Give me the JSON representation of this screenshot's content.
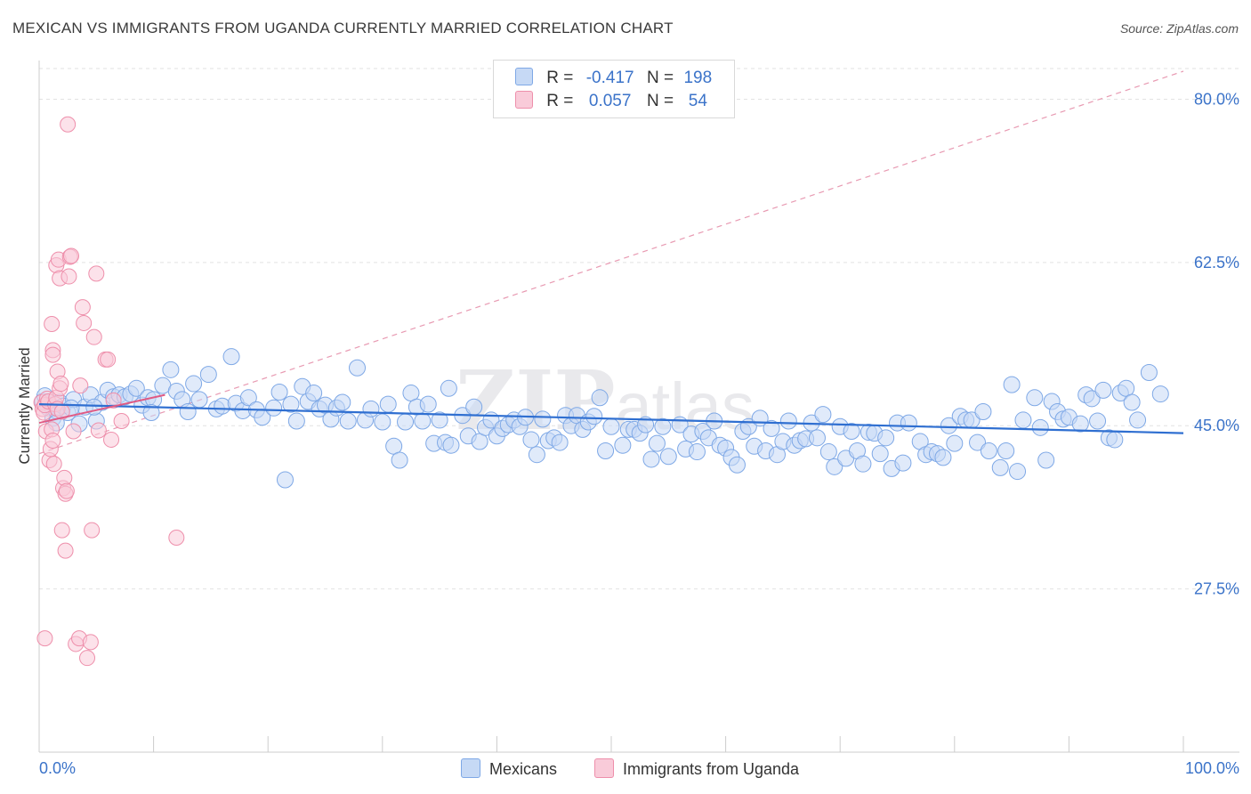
{
  "title": "MEXICAN VS IMMIGRANTS FROM UGANDA CURRENTLY MARRIED CORRELATION CHART",
  "source": "Source: ZipAtlas.com",
  "legend": {
    "r_label": "R =",
    "n_label": "N =",
    "mexicans": {
      "r": "-0.417",
      "n": "198"
    },
    "uganda": {
      "r": "0.057",
      "n": "54"
    }
  },
  "bottom_legend": {
    "mexicans": "Mexicans",
    "uganda": "Immigrants from Uganda"
  },
  "colors": {
    "mexicans_fill": "#c6d9f5",
    "mexicans_stroke": "#7ea8e6",
    "mexicans_line": "#2f6fd1",
    "uganda_fill": "#f9cbd9",
    "uganda_stroke": "#ee8fab",
    "uganda_line": "#e05a84",
    "axis_label": "#3b73c9"
  },
  "chart_data": {
    "type": "scatter",
    "title": "MEXICAN VS IMMIGRANTS FROM UGANDA CURRENTLY MARRIED CORRELATION CHART",
    "xlabel": "",
    "ylabel": "Currently Married",
    "xlim": [
      0,
      100
    ],
    "ylim": [
      10,
      83
    ],
    "x_tick_labels": [
      "0.0%",
      "100.0%"
    ],
    "y_ticks": [
      27.5,
      45.0,
      62.5,
      80.0
    ],
    "y_tick_labels": [
      "27.5%",
      "45.0%",
      "62.5%",
      "80.0%"
    ],
    "grid": "horizontal dashed",
    "watermark": "ZIPatlas",
    "series": [
      {
        "name": "Mexicans",
        "r": -0.417,
        "n": 198,
        "trend": {
          "x": [
            0,
            100
          ],
          "y": [
            47.3,
            44.2
          ]
        },
        "points": [
          [
            0.3,
            47.6
          ],
          [
            0.5,
            48.2
          ],
          [
            0.8,
            46.9
          ],
          [
            1.0,
            47.2
          ],
          [
            1.2,
            45.8
          ],
          [
            1.5,
            46.6
          ],
          [
            1.8,
            47.5
          ],
          [
            2.1,
            47.1
          ],
          [
            2.5,
            46.4
          ],
          [
            3.0,
            47.8
          ],
          [
            3.5,
            45.2
          ],
          [
            4.0,
            47.0
          ],
          [
            4.5,
            48.3
          ],
          [
            5.0,
            45.5
          ],
          [
            5.5,
            47.5
          ],
          [
            6.0,
            48.8
          ],
          [
            6.5,
            48.1
          ],
          [
            7.0,
            48.3
          ],
          [
            7.5,
            48.1
          ],
          [
            8.0,
            48.4
          ],
          [
            8.5,
            49.0
          ],
          [
            9.0,
            47.2
          ],
          [
            9.5,
            48.0
          ],
          [
            10.0,
            47.8
          ],
          [
            10.8,
            49.3
          ],
          [
            11.5,
            51.0
          ],
          [
            12.0,
            48.7
          ],
          [
            12.5,
            47.8
          ],
          [
            13.0,
            46.5
          ],
          [
            13.5,
            49.5
          ],
          [
            14.0,
            47.8
          ],
          [
            14.8,
            50.5
          ],
          [
            15.5,
            46.8
          ],
          [
            16.0,
            47.1
          ],
          [
            16.8,
            52.4
          ],
          [
            17.2,
            47.4
          ],
          [
            17.8,
            46.6
          ],
          [
            18.3,
            48.0
          ],
          [
            19.0,
            46.7
          ],
          [
            19.5,
            45.9
          ],
          [
            20.5,
            46.9
          ],
          [
            21.0,
            48.6
          ],
          [
            22.0,
            47.3
          ],
          [
            22.5,
            45.5
          ],
          [
            23.0,
            49.2
          ],
          [
            23.5,
            47.6
          ],
          [
            24.0,
            48.5
          ],
          [
            24.5,
            46.8
          ],
          [
            25.0,
            47.2
          ],
          [
            25.5,
            45.7
          ],
          [
            26.0,
            46.9
          ],
          [
            26.5,
            47.5
          ],
          [
            27.0,
            45.5
          ],
          [
            27.8,
            51.2
          ],
          [
            28.5,
            45.6
          ],
          [
            29.0,
            46.8
          ],
          [
            30.0,
            45.4
          ],
          [
            30.5,
            47.3
          ],
          [
            31.0,
            42.8
          ],
          [
            31.5,
            41.3
          ],
          [
            32.0,
            45.4
          ],
          [
            32.5,
            48.5
          ],
          [
            33.0,
            47.0
          ],
          [
            33.5,
            45.5
          ],
          [
            34.0,
            47.3
          ],
          [
            34.5,
            43.1
          ],
          [
            35.0,
            45.6
          ],
          [
            35.5,
            43.2
          ],
          [
            35.8,
            49.0
          ],
          [
            36.0,
            42.9
          ],
          [
            37.0,
            46.1
          ],
          [
            37.5,
            43.9
          ],
          [
            38.0,
            47.0
          ],
          [
            38.5,
            43.3
          ],
          [
            39.0,
            44.8
          ],
          [
            39.5,
            45.6
          ],
          [
            40.0,
            43.9
          ],
          [
            40.5,
            44.7
          ],
          [
            41.0,
            45.1
          ],
          [
            41.5,
            45.6
          ],
          [
            42.0,
            44.9
          ],
          [
            42.5,
            45.9
          ],
          [
            43.0,
            43.5
          ],
          [
            43.5,
            41.9
          ],
          [
            44.0,
            45.7
          ],
          [
            44.5,
            43.4
          ],
          [
            45.0,
            43.7
          ],
          [
            45.5,
            43.2
          ],
          [
            46.0,
            46.1
          ],
          [
            46.5,
            45.0
          ],
          [
            47.0,
            46.1
          ],
          [
            47.5,
            44.6
          ],
          [
            48.0,
            45.4
          ],
          [
            48.5,
            46.0
          ],
          [
            49.0,
            48.0
          ],
          [
            49.5,
            42.3
          ],
          [
            50.0,
            44.9
          ],
          [
            51.0,
            42.9
          ],
          [
            51.5,
            44.6
          ],
          [
            52.0,
            44.6
          ],
          [
            52.5,
            44.2
          ],
          [
            53.0,
            45.1
          ],
          [
            53.5,
            41.4
          ],
          [
            54.0,
            43.1
          ],
          [
            54.5,
            44.9
          ],
          [
            55.0,
            41.7
          ],
          [
            56.0,
            45.1
          ],
          [
            56.5,
            42.5
          ],
          [
            57.0,
            44.1
          ],
          [
            57.5,
            42.2
          ],
          [
            58.0,
            44.4
          ],
          [
            58.5,
            43.7
          ],
          [
            59.0,
            45.5
          ],
          [
            59.5,
            42.9
          ],
          [
            60.0,
            42.6
          ],
          [
            60.5,
            41.6
          ],
          [
            61.0,
            40.8
          ],
          [
            61.5,
            44.4
          ],
          [
            62.0,
            44.9
          ],
          [
            62.5,
            42.8
          ],
          [
            63.0,
            45.8
          ],
          [
            63.5,
            42.3
          ],
          [
            64.0,
            44.7
          ],
          [
            64.5,
            41.9
          ],
          [
            65.0,
            43.3
          ],
          [
            65.5,
            45.5
          ],
          [
            66.0,
            42.9
          ],
          [
            66.5,
            43.4
          ],
          [
            67.0,
            43.6
          ],
          [
            67.5,
            45.3
          ],
          [
            68.0,
            43.7
          ],
          [
            68.5,
            46.2
          ],
          [
            69.0,
            42.2
          ],
          [
            69.5,
            40.6
          ],
          [
            70.0,
            44.9
          ],
          [
            70.5,
            41.5
          ],
          [
            71.0,
            44.4
          ],
          [
            71.5,
            42.3
          ],
          [
            72.0,
            40.9
          ],
          [
            72.5,
            44.3
          ],
          [
            73.0,
            44.2
          ],
          [
            73.5,
            42.0
          ],
          [
            74.0,
            43.7
          ],
          [
            74.5,
            40.4
          ],
          [
            75.0,
            45.3
          ],
          [
            75.5,
            41.0
          ],
          [
            76.0,
            45.3
          ],
          [
            77.0,
            43.3
          ],
          [
            77.5,
            41.9
          ],
          [
            78.0,
            42.2
          ],
          [
            78.5,
            42.0
          ],
          [
            79.0,
            41.6
          ],
          [
            79.5,
            45.0
          ],
          [
            80.0,
            43.1
          ],
          [
            80.5,
            46.0
          ],
          [
            81.0,
            45.6
          ],
          [
            81.5,
            45.6
          ],
          [
            82.0,
            43.2
          ],
          [
            82.5,
            46.5
          ],
          [
            83.0,
            42.3
          ],
          [
            84.0,
            40.5
          ],
          [
            84.5,
            42.3
          ],
          [
            85.0,
            49.4
          ],
          [
            85.5,
            40.1
          ],
          [
            86.0,
            45.6
          ],
          [
            87.0,
            48.0
          ],
          [
            87.5,
            44.8
          ],
          [
            88.0,
            41.3
          ],
          [
            88.5,
            47.6
          ],
          [
            89.0,
            46.5
          ],
          [
            89.5,
            45.7
          ],
          [
            90.0,
            45.9
          ],
          [
            91.0,
            45.2
          ],
          [
            91.5,
            48.3
          ],
          [
            92.0,
            47.9
          ],
          [
            92.5,
            45.5
          ],
          [
            93.0,
            48.8
          ],
          [
            93.5,
            43.7
          ],
          [
            94.0,
            43.5
          ],
          [
            94.5,
            48.5
          ],
          [
            95.0,
            49.0
          ],
          [
            95.5,
            47.5
          ],
          [
            96.0,
            45.6
          ],
          [
            97.0,
            50.7
          ],
          [
            98.0,
            48.4
          ],
          [
            1.5,
            45.3
          ],
          [
            2.8,
            46.9
          ],
          [
            4.8,
            47.0
          ],
          [
            9.8,
            46.4
          ],
          [
            21.5,
            39.2
          ]
        ]
      },
      {
        "name": "Immigrants from Uganda",
        "r": 0.057,
        "n": 54,
        "trend": {
          "x": [
            0,
            11
          ],
          "y": [
            45.3,
            48.3
          ]
        },
        "points": [
          [
            0.2,
            47.5
          ],
          [
            0.3,
            46.8
          ],
          [
            0.4,
            46.4
          ],
          [
            0.5,
            47.2
          ],
          [
            0.6,
            44.4
          ],
          [
            0.7,
            47.9
          ],
          [
            0.8,
            47.6
          ],
          [
            0.9,
            41.3
          ],
          [
            1.0,
            42.5
          ],
          [
            1.1,
            44.6
          ],
          [
            1.2,
            43.4
          ],
          [
            1.3,
            40.9
          ],
          [
            1.4,
            47.3
          ],
          [
            1.5,
            48.0
          ],
          [
            1.6,
            46.8
          ],
          [
            1.2,
            53.1
          ],
          [
            1.1,
            55.9
          ],
          [
            1.2,
            52.6
          ],
          [
            1.5,
            62.2
          ],
          [
            1.7,
            62.8
          ],
          [
            1.8,
            60.8
          ],
          [
            1.6,
            50.8
          ],
          [
            1.8,
            49.0
          ],
          [
            1.9,
            49.5
          ],
          [
            2.0,
            46.5
          ],
          [
            2.1,
            38.3
          ],
          [
            2.2,
            39.4
          ],
          [
            2.3,
            37.7
          ],
          [
            2.4,
            38.0
          ],
          [
            2.5,
            77.3
          ],
          [
            2.0,
            33.8
          ],
          [
            2.3,
            31.6
          ],
          [
            2.6,
            61.0
          ],
          [
            2.7,
            63.1
          ],
          [
            2.8,
            63.2
          ],
          [
            3.0,
            44.4
          ],
          [
            3.2,
            21.6
          ],
          [
            3.5,
            22.2
          ],
          [
            3.6,
            49.3
          ],
          [
            3.8,
            57.7
          ],
          [
            3.9,
            56.0
          ],
          [
            4.2,
            20.1
          ],
          [
            4.5,
            21.8
          ],
          [
            4.6,
            33.8
          ],
          [
            4.8,
            54.5
          ],
          [
            5.0,
            61.3
          ],
          [
            5.2,
            44.5
          ],
          [
            5.8,
            52.1
          ],
          [
            6.0,
            52.1
          ],
          [
            6.3,
            43.5
          ],
          [
            6.5,
            47.7
          ],
          [
            7.2,
            45.5
          ],
          [
            12.0,
            33.0
          ],
          [
            0.5,
            22.2
          ]
        ]
      }
    ],
    "reference_line": {
      "style": "dashed",
      "x": [
        0,
        100
      ],
      "y": [
        42.0,
        83.0
      ]
    }
  }
}
